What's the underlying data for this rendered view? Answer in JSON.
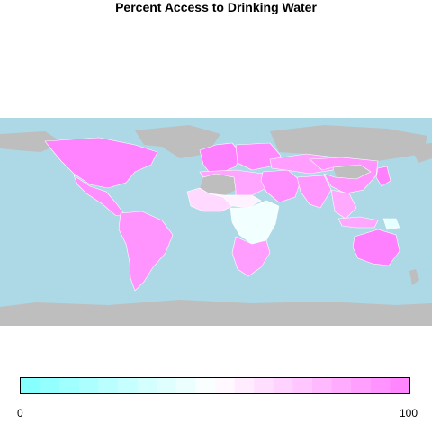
{
  "title": "Percent Access to Drinking Water",
  "map": {
    "type": "choropleth",
    "variable": "Percent Access to Drinking Water",
    "ocean_color": "#add8e6",
    "no_data_color": "#bebebe",
    "border_color": "#ffffff",
    "scale": {
      "min": 0,
      "max": 100,
      "low_color": "#80ffff",
      "mid_color": "#ffffff",
      "high_color": "#ff80ff"
    },
    "regions": [
      {
        "name": "North America",
        "value": 99
      },
      {
        "name": "Mexico & Central America",
        "value": 94
      },
      {
        "name": "South America",
        "value": 92
      },
      {
        "name": "Western Europe",
        "value": 100
      },
      {
        "name": "Eastern Europe",
        "value": 97
      },
      {
        "name": "North Africa",
        "value": 86
      },
      {
        "name": "West Africa",
        "value": 65
      },
      {
        "name": "Sahel",
        "value": 55
      },
      {
        "name": "Central & East Africa",
        "value": 45
      },
      {
        "name": "Southern Africa",
        "value": 88
      },
      {
        "name": "Middle East",
        "value": 94
      },
      {
        "name": "Central Asia",
        "value": 88
      },
      {
        "name": "South Asia",
        "value": 91
      },
      {
        "name": "China",
        "value": 92
      },
      {
        "name": "Southeast Asia",
        "value": 84
      },
      {
        "name": "Japan",
        "value": 100
      },
      {
        "name": "Indonesia",
        "value": 85
      },
      {
        "name": "Papua New Guinea",
        "value": 40
      },
      {
        "name": "Australia",
        "value": 100
      }
    ]
  },
  "legend": {
    "min_label": "0",
    "max_label": "100"
  }
}
